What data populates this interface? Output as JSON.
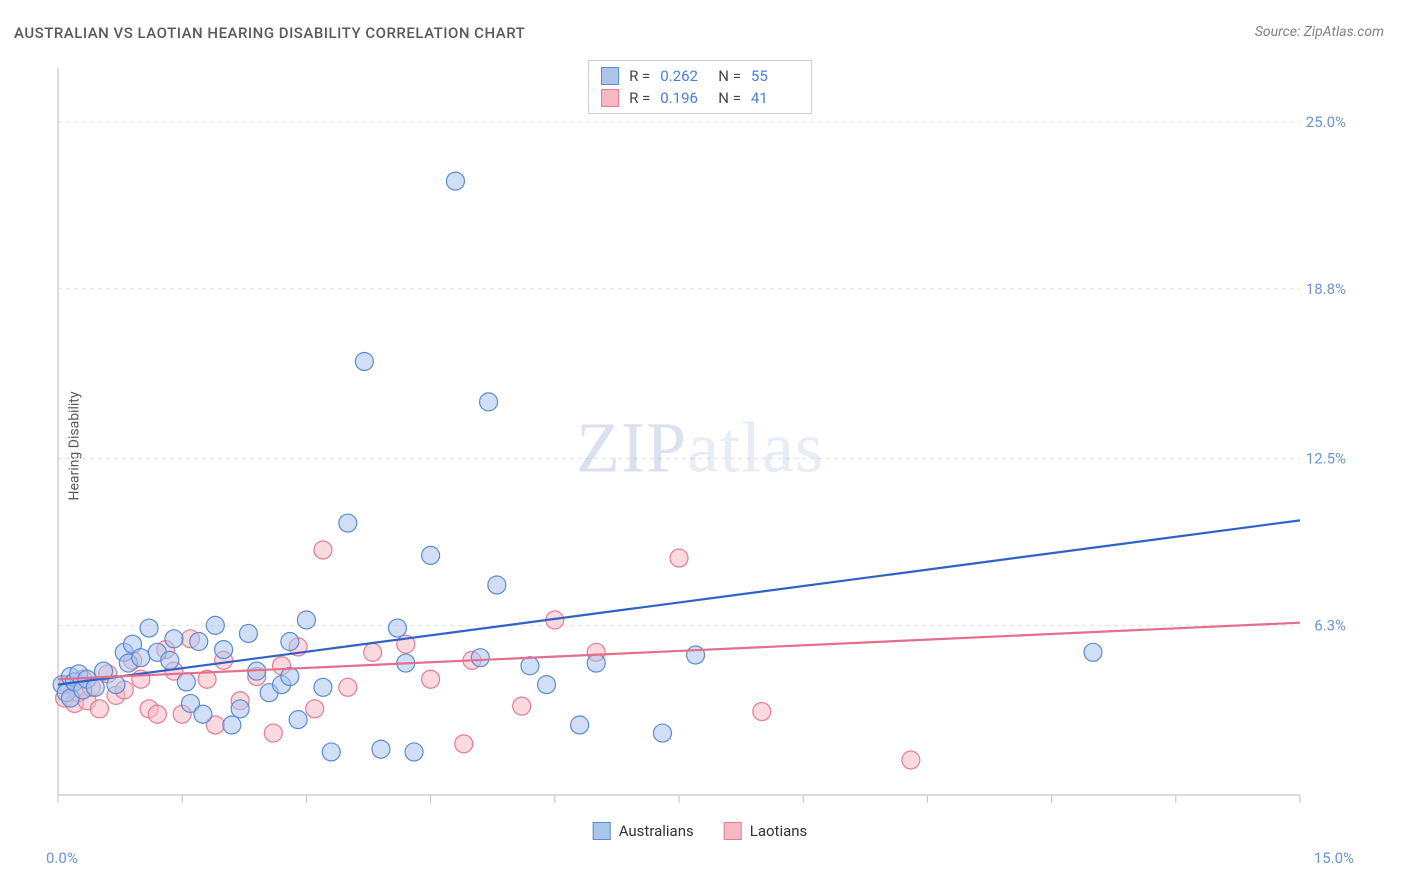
{
  "title": "AUSTRALIAN VS LAOTIAN HEARING DISABILITY CORRELATION CHART",
  "source": "Source: ZipAtlas.com",
  "ylabel": "Hearing Disability",
  "watermark": {
    "zip": "ZIP",
    "atlas": "atlas"
  },
  "chart": {
    "type": "scatter",
    "xlim": [
      0,
      15
    ],
    "ylim": [
      0,
      27
    ],
    "x_axis_label_min": "0.0%",
    "x_axis_label_max": "15.0%",
    "y_ticks": [
      {
        "value": 6.3,
        "label": "6.3%"
      },
      {
        "value": 12.5,
        "label": "12.5%"
      },
      {
        "value": 18.8,
        "label": "18.8%"
      },
      {
        "value": 25.0,
        "label": "25.0%"
      }
    ],
    "x_tick_positions": [
      0,
      1.5,
      3.0,
      4.5,
      6.0,
      7.5,
      9.0,
      10.5,
      12.0,
      13.5,
      15.0
    ],
    "grid_color": "#e0e0e0",
    "background_color": "#ffffff",
    "axis_color": "#d0d0d0",
    "tick_color": "#c0c0c0",
    "marker_radius": 9,
    "marker_stroke_width": 1.2,
    "trend_line_width": 2.2,
    "series": [
      {
        "name": "Australians",
        "fill": "#a9c5ec",
        "stroke": "#5b8bd4",
        "fill_opacity": 0.55,
        "R": "0.262",
        "N": "55",
        "trend": {
          "x1": 0,
          "y1": 4.1,
          "x2": 15,
          "y2": 10.2,
          "color": "#2f62c9"
        },
        "points": [
          [
            0.05,
            4.1
          ],
          [
            0.1,
            3.8
          ],
          [
            0.15,
            4.4
          ],
          [
            0.15,
            3.6
          ],
          [
            0.2,
            4.2
          ],
          [
            0.25,
            4.5
          ],
          [
            0.3,
            3.9
          ],
          [
            0.35,
            4.3
          ],
          [
            0.45,
            4.0
          ],
          [
            0.55,
            4.6
          ],
          [
            0.7,
            4.1
          ],
          [
            0.8,
            5.3
          ],
          [
            0.85,
            4.9
          ],
          [
            0.9,
            5.6
          ],
          [
            1.0,
            5.1
          ],
          [
            1.1,
            6.2
          ],
          [
            1.2,
            5.3
          ],
          [
            1.35,
            5.0
          ],
          [
            1.4,
            5.8
          ],
          [
            1.55,
            4.2
          ],
          [
            1.6,
            3.4
          ],
          [
            1.7,
            5.7
          ],
          [
            1.75,
            3.0
          ],
          [
            1.9,
            6.3
          ],
          [
            2.0,
            5.4
          ],
          [
            2.1,
            2.6
          ],
          [
            2.2,
            3.2
          ],
          [
            2.3,
            6.0
          ],
          [
            2.4,
            4.6
          ],
          [
            2.55,
            3.8
          ],
          [
            2.7,
            4.1
          ],
          [
            2.8,
            5.7
          ],
          [
            2.8,
            4.4
          ],
          [
            2.9,
            2.8
          ],
          [
            3.0,
            6.5
          ],
          [
            3.2,
            4.0
          ],
          [
            3.3,
            1.6
          ],
          [
            3.5,
            10.1
          ],
          [
            3.7,
            16.1
          ],
          [
            3.9,
            1.7
          ],
          [
            4.1,
            6.2
          ],
          [
            4.2,
            4.9
          ],
          [
            4.3,
            1.6
          ],
          [
            4.5,
            8.9
          ],
          [
            4.8,
            22.8
          ],
          [
            5.1,
            5.1
          ],
          [
            5.2,
            14.6
          ],
          [
            5.3,
            7.8
          ],
          [
            5.7,
            4.8
          ],
          [
            5.9,
            4.1
          ],
          [
            6.3,
            2.6
          ],
          [
            6.5,
            4.9
          ],
          [
            7.3,
            2.3
          ],
          [
            7.7,
            5.2
          ],
          [
            12.5,
            5.3
          ]
        ]
      },
      {
        "name": "Laotians",
        "fill": "#f6b9c4",
        "stroke": "#e87a94",
        "fill_opacity": 0.55,
        "R": "0.196",
        "N": "41",
        "trend": {
          "x1": 0,
          "y1": 4.3,
          "x2": 15,
          "y2": 6.4,
          "color": "#e46f8b"
        },
        "points": [
          [
            0.08,
            3.6
          ],
          [
            0.12,
            4.1
          ],
          [
            0.2,
            3.4
          ],
          [
            0.25,
            3.8
          ],
          [
            0.3,
            4.3
          ],
          [
            0.35,
            3.5
          ],
          [
            0.4,
            4.0
          ],
          [
            0.5,
            3.2
          ],
          [
            0.6,
            4.5
          ],
          [
            0.7,
            3.7
          ],
          [
            0.8,
            3.9
          ],
          [
            0.9,
            5.0
          ],
          [
            1.0,
            4.3
          ],
          [
            1.1,
            3.2
          ],
          [
            1.2,
            3.0
          ],
          [
            1.3,
            5.4
          ],
          [
            1.4,
            4.6
          ],
          [
            1.5,
            3.0
          ],
          [
            1.6,
            5.8
          ],
          [
            1.8,
            4.3
          ],
          [
            1.9,
            2.6
          ],
          [
            2.0,
            5.0
          ],
          [
            2.2,
            3.5
          ],
          [
            2.4,
            4.4
          ],
          [
            2.6,
            2.3
          ],
          [
            2.7,
            4.8
          ],
          [
            2.9,
            5.5
          ],
          [
            3.1,
            3.2
          ],
          [
            3.2,
            9.1
          ],
          [
            3.5,
            4.0
          ],
          [
            3.8,
            5.3
          ],
          [
            4.2,
            5.6
          ],
          [
            4.5,
            4.3
          ],
          [
            4.9,
            1.9
          ],
          [
            5.0,
            5.0
          ],
          [
            5.6,
            3.3
          ],
          [
            6.0,
            6.5
          ],
          [
            6.5,
            5.3
          ],
          [
            7.5,
            8.8
          ],
          [
            8.5,
            3.1
          ],
          [
            10.3,
            1.3
          ]
        ]
      }
    ],
    "legend_bottom": [
      {
        "label": "Australians",
        "fill": "#a9c5ec",
        "stroke": "#5b8bd4"
      },
      {
        "label": "Laotians",
        "fill": "#f6b9c4",
        "stroke": "#e87a94"
      }
    ]
  }
}
